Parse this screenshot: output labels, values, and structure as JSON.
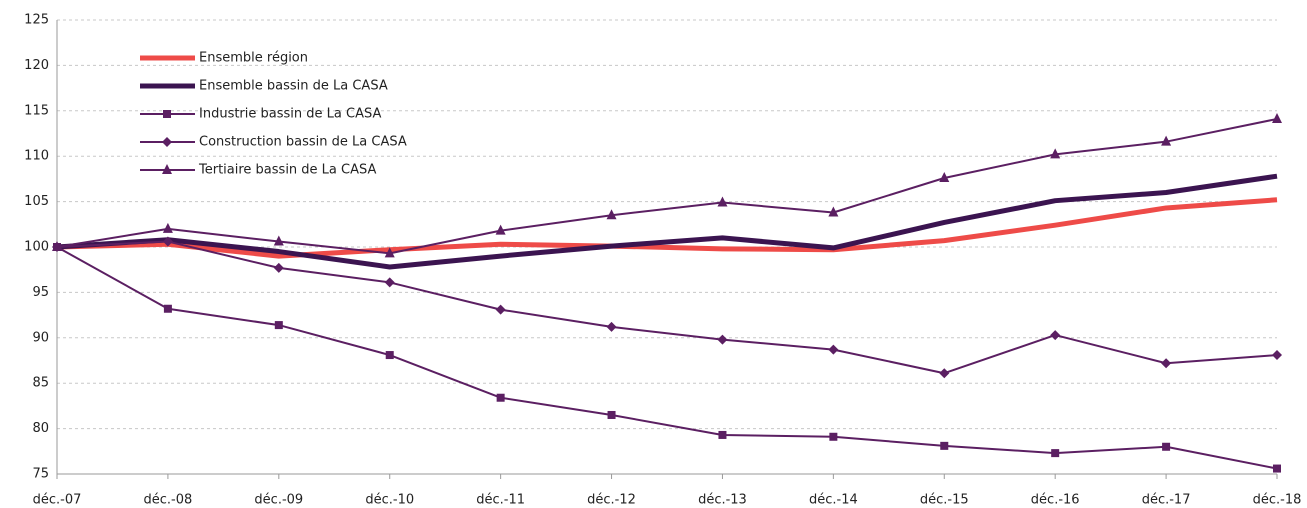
{
  "chart_data": {
    "type": "line",
    "categories": [
      "déc.-07",
      "déc.-08",
      "déc.-09",
      "déc.-10",
      "déc.-11",
      "déc.-12",
      "déc.-13",
      "déc.-14",
      "déc.-15",
      "déc.-16",
      "déc.-17",
      "déc.-18"
    ],
    "series": [
      {
        "name": "Ensemble région",
        "color": "#ee4b48",
        "line_width": 5,
        "marker": null,
        "values": [
          100,
          100.3,
          99,
          99.7,
          100.3,
          100.1,
          99.8,
          99.7,
          100.7,
          102.4,
          104.3,
          105.2
        ]
      },
      {
        "name": "Ensemble bassin de La CASA",
        "color": "#3b1450",
        "line_width": 5,
        "marker": null,
        "values": [
          100,
          100.8,
          99.5,
          97.8,
          99,
          100.1,
          101,
          99.9,
          102.7,
          105.1,
          106,
          107.8
        ]
      },
      {
        "name": "Industrie bassin de La CASA",
        "color": "#5b1f62",
        "line_width": 2,
        "marker": "square",
        "values": [
          100,
          93.2,
          91.4,
          88.1,
          83.4,
          81.5,
          79.3,
          79.1,
          78.1,
          77.3,
          78,
          75.6
        ]
      },
      {
        "name": "Construction bassin de La CASA",
        "color": "#5b1f62",
        "line_width": 2,
        "marker": "diamond",
        "values": [
          100,
          100.6,
          97.7,
          96.1,
          93.1,
          91.2,
          89.8,
          88.7,
          86.1,
          90.3,
          87.2,
          88.1
        ]
      },
      {
        "name": "Tertiaire bassin de La CASA",
        "color": "#5b1f62",
        "line_width": 2,
        "marker": "triangle",
        "values": [
          100,
          102,
          100.6,
          99.3,
          101.8,
          103.5,
          104.9,
          103.8,
          107.6,
          110.2,
          111.6,
          114.1
        ]
      }
    ],
    "ylim": [
      75,
      125
    ],
    "yticks": [
      75,
      80,
      85,
      90,
      95,
      100,
      105,
      110,
      115,
      120,
      125
    ],
    "grid": true,
    "legend": "upper left"
  }
}
